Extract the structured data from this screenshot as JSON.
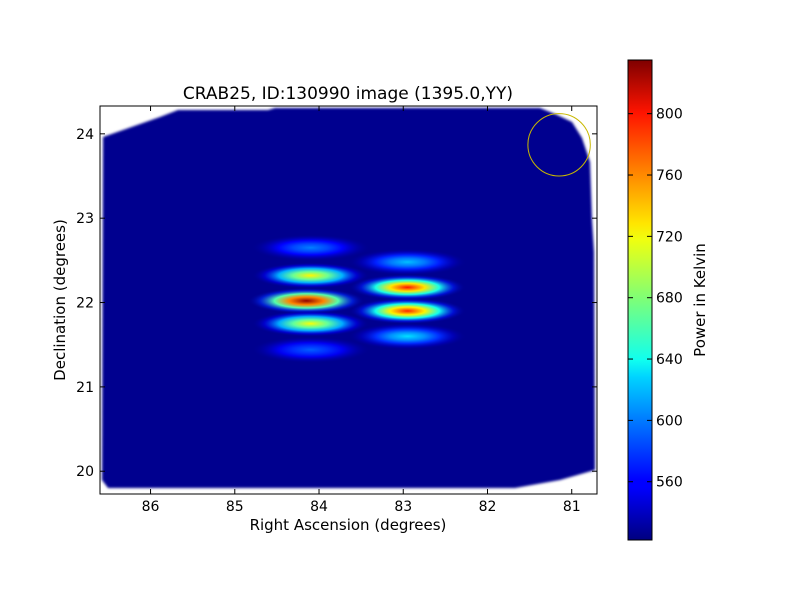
{
  "chart_data": {
    "type": "heatmap",
    "title": "CRAB25, ID:130990 image (1395.0,YY)",
    "xlabel": "Right Ascension (degrees)",
    "ylabel": "Declination (degrees)",
    "xlim": [
      86.6,
      80.7
    ],
    "ylim": [
      19.73,
      24.33
    ],
    "x_ticks": [
      "86",
      "85",
      "84",
      "83",
      "82",
      "81"
    ],
    "y_ticks": [
      "20",
      "21",
      "22",
      "23",
      "24"
    ],
    "colorbar": {
      "label": "Power in Kelvin",
      "range": [
        522,
        835
      ],
      "ticks": [
        "560",
        "600",
        "640",
        "680",
        "720",
        "760",
        "800"
      ],
      "colormap": "jet"
    },
    "background_value": 530,
    "peaks": [
      {
        "ra": 84.15,
        "dec": 22.02,
        "value": 830
      },
      {
        "ra": 84.1,
        "dec": 22.32,
        "value": 720
      },
      {
        "ra": 84.1,
        "dec": 21.75,
        "value": 715
      },
      {
        "ra": 84.1,
        "dec": 22.65,
        "value": 600
      },
      {
        "ra": 84.1,
        "dec": 21.44,
        "value": 590
      },
      {
        "ra": 82.95,
        "dec": 22.18,
        "value": 790
      },
      {
        "ra": 82.95,
        "dec": 21.9,
        "value": 785
      },
      {
        "ra": 82.95,
        "dec": 22.48,
        "value": 620
      },
      {
        "ra": 82.95,
        "dec": 21.6,
        "value": 630
      }
    ],
    "marker_circle": {
      "ra": 81.15,
      "dec": 23.87,
      "radius_deg": 0.37,
      "color": "#c8b800"
    },
    "grid": false,
    "legend": "none"
  }
}
